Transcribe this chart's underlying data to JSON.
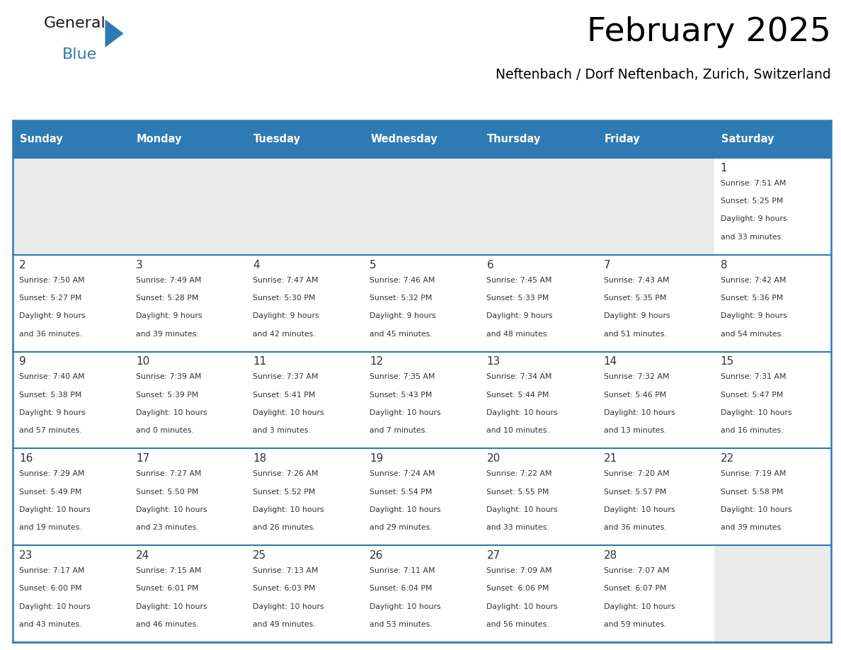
{
  "title": "February 2025",
  "subtitle": "Neftenbach / Dorf Neftenbach, Zurich, Switzerland",
  "header_bg": "#2E7AB4",
  "header_text": "#FFFFFF",
  "cell_bg_light": "#EBEBEB",
  "cell_bg_white": "#FFFFFF",
  "border_color": "#2E7AB4",
  "text_color": "#333333",
  "day_names": [
    "Sunday",
    "Monday",
    "Tuesday",
    "Wednesday",
    "Thursday",
    "Friday",
    "Saturday"
  ],
  "days": [
    {
      "day": 1,
      "col": 6,
      "row": 0,
      "sunrise": "7:51 AM",
      "sunset": "5:25 PM",
      "daylight_h": "9 hours",
      "daylight_m": "33 minutes"
    },
    {
      "day": 2,
      "col": 0,
      "row": 1,
      "sunrise": "7:50 AM",
      "sunset": "5:27 PM",
      "daylight_h": "9 hours",
      "daylight_m": "36 minutes"
    },
    {
      "day": 3,
      "col": 1,
      "row": 1,
      "sunrise": "7:49 AM",
      "sunset": "5:28 PM",
      "daylight_h": "9 hours",
      "daylight_m": "39 minutes"
    },
    {
      "day": 4,
      "col": 2,
      "row": 1,
      "sunrise": "7:47 AM",
      "sunset": "5:30 PM",
      "daylight_h": "9 hours",
      "daylight_m": "42 minutes"
    },
    {
      "day": 5,
      "col": 3,
      "row": 1,
      "sunrise": "7:46 AM",
      "sunset": "5:32 PM",
      "daylight_h": "9 hours",
      "daylight_m": "45 minutes"
    },
    {
      "day": 6,
      "col": 4,
      "row": 1,
      "sunrise": "7:45 AM",
      "sunset": "5:33 PM",
      "daylight_h": "9 hours",
      "daylight_m": "48 minutes"
    },
    {
      "day": 7,
      "col": 5,
      "row": 1,
      "sunrise": "7:43 AM",
      "sunset": "5:35 PM",
      "daylight_h": "9 hours",
      "daylight_m": "51 minutes"
    },
    {
      "day": 8,
      "col": 6,
      "row": 1,
      "sunrise": "7:42 AM",
      "sunset": "5:36 PM",
      "daylight_h": "9 hours",
      "daylight_m": "54 minutes"
    },
    {
      "day": 9,
      "col": 0,
      "row": 2,
      "sunrise": "7:40 AM",
      "sunset": "5:38 PM",
      "daylight_h": "9 hours",
      "daylight_m": "57 minutes"
    },
    {
      "day": 10,
      "col": 1,
      "row": 2,
      "sunrise": "7:39 AM",
      "sunset": "5:39 PM",
      "daylight_h": "10 hours",
      "daylight_m": "0 minutes"
    },
    {
      "day": 11,
      "col": 2,
      "row": 2,
      "sunrise": "7:37 AM",
      "sunset": "5:41 PM",
      "daylight_h": "10 hours",
      "daylight_m": "3 minutes"
    },
    {
      "day": 12,
      "col": 3,
      "row": 2,
      "sunrise": "7:35 AM",
      "sunset": "5:43 PM",
      "daylight_h": "10 hours",
      "daylight_m": "7 minutes"
    },
    {
      "day": 13,
      "col": 4,
      "row": 2,
      "sunrise": "7:34 AM",
      "sunset": "5:44 PM",
      "daylight_h": "10 hours",
      "daylight_m": "10 minutes"
    },
    {
      "day": 14,
      "col": 5,
      "row": 2,
      "sunrise": "7:32 AM",
      "sunset": "5:46 PM",
      "daylight_h": "10 hours",
      "daylight_m": "13 minutes"
    },
    {
      "day": 15,
      "col": 6,
      "row": 2,
      "sunrise": "7:31 AM",
      "sunset": "5:47 PM",
      "daylight_h": "10 hours",
      "daylight_m": "16 minutes"
    },
    {
      "day": 16,
      "col": 0,
      "row": 3,
      "sunrise": "7:29 AM",
      "sunset": "5:49 PM",
      "daylight_h": "10 hours",
      "daylight_m": "19 minutes"
    },
    {
      "day": 17,
      "col": 1,
      "row": 3,
      "sunrise": "7:27 AM",
      "sunset": "5:50 PM",
      "daylight_h": "10 hours",
      "daylight_m": "23 minutes"
    },
    {
      "day": 18,
      "col": 2,
      "row": 3,
      "sunrise": "7:26 AM",
      "sunset": "5:52 PM",
      "daylight_h": "10 hours",
      "daylight_m": "26 minutes"
    },
    {
      "day": 19,
      "col": 3,
      "row": 3,
      "sunrise": "7:24 AM",
      "sunset": "5:54 PM",
      "daylight_h": "10 hours",
      "daylight_m": "29 minutes"
    },
    {
      "day": 20,
      "col": 4,
      "row": 3,
      "sunrise": "7:22 AM",
      "sunset": "5:55 PM",
      "daylight_h": "10 hours",
      "daylight_m": "33 minutes"
    },
    {
      "day": 21,
      "col": 5,
      "row": 3,
      "sunrise": "7:20 AM",
      "sunset": "5:57 PM",
      "daylight_h": "10 hours",
      "daylight_m": "36 minutes"
    },
    {
      "day": 22,
      "col": 6,
      "row": 3,
      "sunrise": "7:19 AM",
      "sunset": "5:58 PM",
      "daylight_h": "10 hours",
      "daylight_m": "39 minutes"
    },
    {
      "day": 23,
      "col": 0,
      "row": 4,
      "sunrise": "7:17 AM",
      "sunset": "6:00 PM",
      "daylight_h": "10 hours",
      "daylight_m": "43 minutes"
    },
    {
      "day": 24,
      "col": 1,
      "row": 4,
      "sunrise": "7:15 AM",
      "sunset": "6:01 PM",
      "daylight_h": "10 hours",
      "daylight_m": "46 minutes"
    },
    {
      "day": 25,
      "col": 2,
      "row": 4,
      "sunrise": "7:13 AM",
      "sunset": "6:03 PM",
      "daylight_h": "10 hours",
      "daylight_m": "49 minutes"
    },
    {
      "day": 26,
      "col": 3,
      "row": 4,
      "sunrise": "7:11 AM",
      "sunset": "6:04 PM",
      "daylight_h": "10 hours",
      "daylight_m": "53 minutes"
    },
    {
      "day": 27,
      "col": 4,
      "row": 4,
      "sunrise": "7:09 AM",
      "sunset": "6:06 PM",
      "daylight_h": "10 hours",
      "daylight_m": "56 minutes"
    },
    {
      "day": 28,
      "col": 5,
      "row": 4,
      "sunrise": "7:07 AM",
      "sunset": "6:07 PM",
      "daylight_h": "10 hours",
      "daylight_m": "59 minutes"
    }
  ],
  "logo_text1": "General",
  "logo_text2": "Blue",
  "logo_color1": "#1a1a1a",
  "logo_color2": "#2E7AB4",
  "figsize": [
    11.88,
    9.18
  ],
  "dpi": 100
}
